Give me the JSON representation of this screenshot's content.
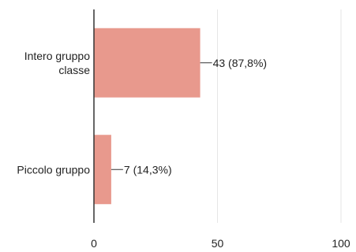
{
  "chart_data": {
    "type": "bar",
    "orientation": "horizontal",
    "title": "",
    "xlabel": "",
    "ylabel": "",
    "xlim": [
      0,
      100
    ],
    "x_ticks": [
      "0",
      "50",
      "100"
    ],
    "grid": true,
    "categories": [
      [
        "Intero gruppo",
        "classe"
      ],
      [
        "Piccolo gruppo"
      ]
    ],
    "values": [
      43,
      7
    ],
    "percentages": [
      87.8,
      14.3
    ],
    "data_labels": [
      "43 (87,8%)",
      "7 (14,3%)"
    ],
    "bar_color": "#e8998d",
    "grid_color": "#e6e6e6",
    "axis_color": "#333333"
  }
}
